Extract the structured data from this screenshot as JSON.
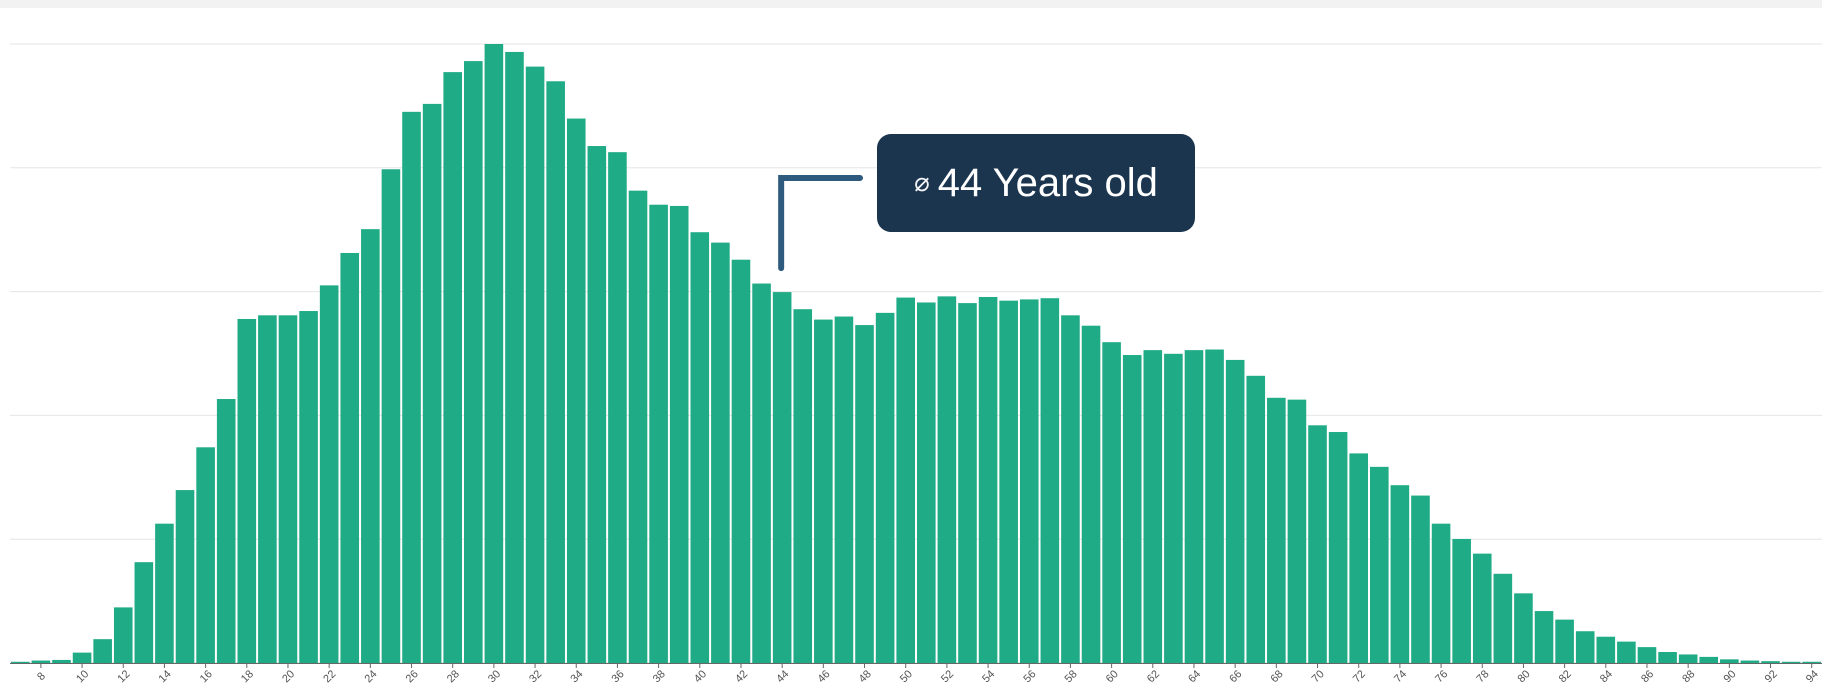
{
  "chart_data": {
    "type": "bar",
    "x": [
      7,
      8,
      9,
      10,
      11,
      12,
      13,
      14,
      15,
      16,
      17,
      18,
      19,
      20,
      21,
      22,
      23,
      24,
      25,
      26,
      27,
      28,
      29,
      30,
      31,
      32,
      33,
      34,
      35,
      36,
      37,
      38,
      39,
      40,
      41,
      42,
      43,
      44,
      45,
      46,
      47,
      48,
      49,
      50,
      51,
      52,
      53,
      54,
      55,
      56,
      57,
      58,
      59,
      60,
      61,
      62,
      63,
      64,
      65,
      66,
      67,
      68,
      69,
      70,
      71,
      72,
      73,
      74,
      75,
      76,
      77,
      78,
      79,
      80,
      81,
      82,
      83,
      84,
      85,
      86,
      87,
      88,
      89,
      90,
      91,
      92,
      93,
      94
    ],
    "values": [
      0.2,
      0.4,
      0.5,
      1.7,
      3.9,
      9.1,
      16.5,
      22.8,
      28.3,
      35.3,
      43.2,
      56.3,
      56.9,
      56.9,
      57.6,
      61.8,
      67.1,
      71.0,
      80.8,
      90.2,
      91.5,
      96.7,
      98.5,
      101.3,
      100.0,
      97.6,
      95.2,
      89.1,
      84.6,
      83.6,
      77.3,
      75.0,
      74.8,
      70.5,
      68.8,
      66.0,
      62.1,
      60.7,
      57.9,
      56.2,
      56.7,
      55.3,
      57.3,
      59.8,
      59.0,
      60.0,
      58.9,
      59.9,
      59.3,
      59.5,
      59.7,
      56.9,
      55.2,
      52.5,
      50.4,
      51.2,
      50.6,
      51.2,
      51.3,
      49.6,
      47.0,
      43.4,
      43.1,
      38.9,
      37.8,
      34.3,
      32.1,
      29.1,
      27.4,
      22.8,
      20.3,
      17.9,
      14.6,
      11.4,
      8.5,
      7.1,
      5.2,
      4.3,
      3.5,
      2.6,
      1.8,
      1.4,
      1.0,
      0.6,
      0.4,
      0.3,
      0.2,
      0.2
    ],
    "x_tick_labels": [
      "8",
      "10",
      "12",
      "14",
      "16",
      "18",
      "20",
      "22",
      "24",
      "26",
      "28",
      "30",
      "32",
      "34",
      "36",
      "38",
      "40",
      "42",
      "44",
      "46",
      "48",
      "50",
      "52",
      "54",
      "56",
      "58",
      "60",
      "62",
      "64",
      "66",
      "68",
      "70",
      "72",
      "74",
      "76",
      "78",
      "80",
      "82",
      "84",
      "86",
      "88",
      "90",
      "92",
      "94"
    ],
    "xlim": [
      7,
      94
    ],
    "ylim": [
      0,
      101.3
    ],
    "grid": true,
    "title": "",
    "xlabel": "",
    "ylabel": "",
    "colors": {
      "bar": "#1fab86",
      "callout_bg": "#1b354f",
      "callout_line": "#2e5a7e",
      "grid": "#e6e6e6",
      "axis": "#666666"
    },
    "annotation": {
      "text": "44 Years old",
      "icon": "diameter-icon",
      "icon_glyph": "⌀",
      "x": 44
    }
  }
}
